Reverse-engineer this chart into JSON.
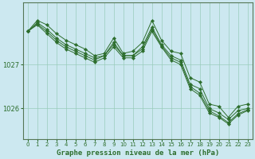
{
  "background_color": "#cce8f0",
  "grid_color": "#99ccbb",
  "line_color": "#2d6e2d",
  "xlabel": "Graphe pression niveau de la mer (hPa)",
  "yticks": [
    1026,
    1027
  ],
  "ylim": [
    1025.3,
    1028.4
  ],
  "xlim": [
    -0.5,
    23.5
  ],
  "xticks": [
    0,
    1,
    2,
    3,
    4,
    5,
    6,
    7,
    8,
    9,
    10,
    11,
    12,
    13,
    14,
    15,
    16,
    17,
    18,
    19,
    20,
    21,
    22,
    23
  ],
  "series": [
    [
      1027.75,
      1028.0,
      1027.9,
      1027.7,
      1027.55,
      1027.45,
      1027.35,
      1027.2,
      1027.25,
      1027.6,
      1027.25,
      1027.3,
      1027.5,
      1028.0,
      1027.55,
      1027.3,
      1027.25,
      1026.7,
      1026.6,
      1026.1,
      1026.05,
      1025.8,
      1026.05,
      1026.1
    ],
    [
      1027.75,
      1027.95,
      1027.8,
      1027.6,
      1027.45,
      1027.35,
      1027.25,
      1027.15,
      1027.2,
      1027.5,
      1027.2,
      1027.2,
      1027.4,
      1027.85,
      1027.45,
      1027.2,
      1027.1,
      1026.55,
      1026.45,
      1026.0,
      1025.9,
      1025.75,
      1025.95,
      1026.0
    ],
    [
      1027.75,
      1027.9,
      1027.7,
      1027.5,
      1027.35,
      1027.25,
      1027.15,
      1027.05,
      1027.15,
      1027.4,
      1027.15,
      1027.15,
      1027.3,
      1027.75,
      1027.4,
      1027.1,
      1027.0,
      1026.45,
      1026.3,
      1025.9,
      1025.8,
      1025.65,
      1025.85,
      1025.95
    ],
    [
      1027.75,
      1027.92,
      1027.75,
      1027.55,
      1027.4,
      1027.3,
      1027.2,
      1027.1,
      1027.2,
      1027.45,
      1027.2,
      1027.2,
      1027.35,
      1027.8,
      1027.42,
      1027.15,
      1027.05,
      1026.5,
      1026.35,
      1025.95,
      1025.83,
      1025.68,
      1025.88,
      1025.97
    ]
  ]
}
